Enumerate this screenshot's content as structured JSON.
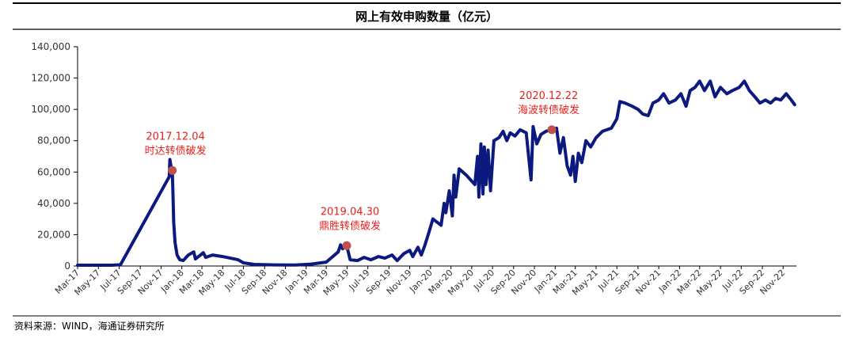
{
  "chart_data": {
    "type": "line",
    "title": "网上有效申购数量（亿元）",
    "source": "资料来源：WIND，海通证券研究所",
    "xlabel": "",
    "ylabel": "",
    "ylim": [
      0,
      140000
    ],
    "yticks": [
      0,
      20000,
      40000,
      60000,
      80000,
      100000,
      120000,
      140000
    ],
    "ytick_labels": [
      "0",
      "20,000",
      "40,000",
      "60,000",
      "80,000",
      "100,000",
      "120,000",
      "140,000"
    ],
    "xtick_labels": [
      "Mar-17",
      "May-17",
      "Jul-17",
      "Sep-17",
      "Nov-17",
      "Jan-18",
      "Mar-18",
      "May-18",
      "Jul-18",
      "Sep-18",
      "Nov-18",
      "Jan-19",
      "Mar-19",
      "May-19",
      "Jul-19",
      "Sep-19",
      "Nov-19",
      "Jan-20",
      "Mar-20",
      "May-20",
      "Jul-20",
      "Sep-20",
      "Nov-20",
      "Jan-21",
      "Mar-21",
      "May-21",
      "Jul-21",
      "Sep-21",
      "Nov-21",
      "Jan-22",
      "Mar-22",
      "May-22",
      "Jul-22",
      "Sep-22",
      "Nov-22"
    ],
    "x_start": "2017-03-01",
    "x_end": "2022-12-10",
    "grid": false,
    "line_color": "#0c1a80",
    "series": [
      {
        "name": "",
        "points": [
          [
            "2017-03-01",
            500
          ],
          [
            "2017-06-10",
            500
          ],
          [
            "2017-07-05",
            800
          ],
          [
            "2017-11-25",
            57000
          ],
          [
            "2017-11-27",
            68000
          ],
          [
            "2017-11-30",
            64000
          ],
          [
            "2017-12-04",
            61000
          ],
          [
            "2017-12-06",
            46000
          ],
          [
            "2017-12-08",
            28000
          ],
          [
            "2017-12-12",
            15000
          ],
          [
            "2017-12-18",
            7000
          ],
          [
            "2017-12-26",
            4000
          ],
          [
            "2018-01-05",
            3500
          ],
          [
            "2018-01-20",
            7000
          ],
          [
            "2018-02-05",
            9000
          ],
          [
            "2018-02-10",
            4500
          ],
          [
            "2018-02-25",
            7000
          ],
          [
            "2018-03-05",
            8500
          ],
          [
            "2018-03-12",
            5500
          ],
          [
            "2018-04-01",
            7000
          ],
          [
            "2018-05-01",
            6000
          ],
          [
            "2018-06-15",
            4000
          ],
          [
            "2018-07-01",
            2000
          ],
          [
            "2018-08-01",
            1000
          ],
          [
            "2018-10-01",
            700
          ],
          [
            "2018-12-01",
            600
          ],
          [
            "2019-01-15",
            1200
          ],
          [
            "2019-03-01",
            2500
          ],
          [
            "2019-03-20",
            6000
          ],
          [
            "2019-04-05",
            9000
          ],
          [
            "2019-04-12",
            13500
          ],
          [
            "2019-04-18",
            11000
          ],
          [
            "2019-04-30",
            13000
          ],
          [
            "2019-05-10",
            4000
          ],
          [
            "2019-06-01",
            3500
          ],
          [
            "2019-06-20",
            5500
          ],
          [
            "2019-07-10",
            4000
          ],
          [
            "2019-08-01",
            6000
          ],
          [
            "2019-08-20",
            5000
          ],
          [
            "2019-09-10",
            7000
          ],
          [
            "2019-09-25",
            3500
          ],
          [
            "2019-10-15",
            8000
          ],
          [
            "2019-11-01",
            10000
          ],
          [
            "2019-11-10",
            6000
          ],
          [
            "2019-11-25",
            12000
          ],
          [
            "2019-12-05",
            7000
          ],
          [
            "2019-12-15",
            13000
          ],
          [
            "2019-12-28",
            22000
          ],
          [
            "2020-01-08",
            30000
          ],
          [
            "2020-02-01",
            26000
          ],
          [
            "2020-02-10",
            40000
          ],
          [
            "2020-02-15",
            34000
          ],
          [
            "2020-02-25",
            48000
          ],
          [
            "2020-03-05",
            32000
          ],
          [
            "2020-03-10",
            58000
          ],
          [
            "2020-03-15",
            44000
          ],
          [
            "2020-03-25",
            62000
          ],
          [
            "2020-04-15",
            58000
          ],
          [
            "2020-05-10",
            52000
          ],
          [
            "2020-05-18",
            70000
          ],
          [
            "2020-05-22",
            44000
          ],
          [
            "2020-05-28",
            78000
          ],
          [
            "2020-06-03",
            46000
          ],
          [
            "2020-06-07",
            76000
          ],
          [
            "2020-06-12",
            52000
          ],
          [
            "2020-06-18",
            74000
          ],
          [
            "2020-06-25",
            48000
          ],
          [
            "2020-07-05",
            80000
          ],
          [
            "2020-07-20",
            82000
          ],
          [
            "2020-08-01",
            86000
          ],
          [
            "2020-08-12",
            80000
          ],
          [
            "2020-08-22",
            85000
          ],
          [
            "2020-09-05",
            83000
          ],
          [
            "2020-09-20",
            87000
          ],
          [
            "2020-10-08",
            85000
          ],
          [
            "2020-10-22",
            55000
          ],
          [
            "2020-10-28",
            89000
          ],
          [
            "2020-11-08",
            78000
          ],
          [
            "2020-11-20",
            84000
          ],
          [
            "2020-12-05",
            86000
          ],
          [
            "2020-12-22",
            87000
          ],
          [
            "2021-01-05",
            88000
          ],
          [
            "2021-01-15",
            72000
          ],
          [
            "2021-01-25",
            82000
          ],
          [
            "2021-02-05",
            64000
          ],
          [
            "2021-02-15",
            58000
          ],
          [
            "2021-02-22",
            70000
          ],
          [
            "2021-03-01",
            54000
          ],
          [
            "2021-03-10",
            72000
          ],
          [
            "2021-03-20",
            66000
          ],
          [
            "2021-04-01",
            80000
          ],
          [
            "2021-04-15",
            76000
          ],
          [
            "2021-05-01",
            82000
          ],
          [
            "2021-05-20",
            86000
          ],
          [
            "2021-06-15",
            88000
          ],
          [
            "2021-07-01",
            94000
          ],
          [
            "2021-07-10",
            105000
          ],
          [
            "2021-07-25",
            104000
          ],
          [
            "2021-08-15",
            102000
          ],
          [
            "2021-09-01",
            100000
          ],
          [
            "2021-09-15",
            97000
          ],
          [
            "2021-10-01",
            96000
          ],
          [
            "2021-10-15",
            104000
          ],
          [
            "2021-11-01",
            106000
          ],
          [
            "2021-11-15",
            110000
          ],
          [
            "2021-12-01",
            104000
          ],
          [
            "2021-12-20",
            106000
          ],
          [
            "2022-01-05",
            110000
          ],
          [
            "2022-01-20",
            102000
          ],
          [
            "2022-02-01",
            112000
          ],
          [
            "2022-02-15",
            114000
          ],
          [
            "2022-03-01",
            118000
          ],
          [
            "2022-03-15",
            112000
          ],
          [
            "2022-04-01",
            118000
          ],
          [
            "2022-04-15",
            108000
          ],
          [
            "2022-05-01",
            114000
          ],
          [
            "2022-05-20",
            110000
          ],
          [
            "2022-06-05",
            112000
          ],
          [
            "2022-06-25",
            114000
          ],
          [
            "2022-07-10",
            118000
          ],
          [
            "2022-07-25",
            112000
          ],
          [
            "2022-08-10",
            108000
          ],
          [
            "2022-08-25",
            104000
          ],
          [
            "2022-09-10",
            106000
          ],
          [
            "2022-09-25",
            104000
          ],
          [
            "2022-10-10",
            107000
          ],
          [
            "2022-10-25",
            106000
          ],
          [
            "2022-11-10",
            110000
          ],
          [
            "2022-11-25",
            106000
          ],
          [
            "2022-12-05",
            103000
          ]
        ]
      }
    ],
    "annotations": [
      {
        "date": "2017-12-04",
        "value": 61000,
        "label_date": "2017.12.04",
        "label_text": "时达转债破发"
      },
      {
        "date": "2019-04-30",
        "value": 13000,
        "label_date": "2019.04.30",
        "label_text": "鼎胜转债破发"
      },
      {
        "date": "2020-12-22",
        "value": 87000,
        "label_date": "2020.12.22",
        "label_text": "海波转债破发"
      }
    ],
    "annotation_color": "#e8211c",
    "marker_color": "#c0504d"
  }
}
